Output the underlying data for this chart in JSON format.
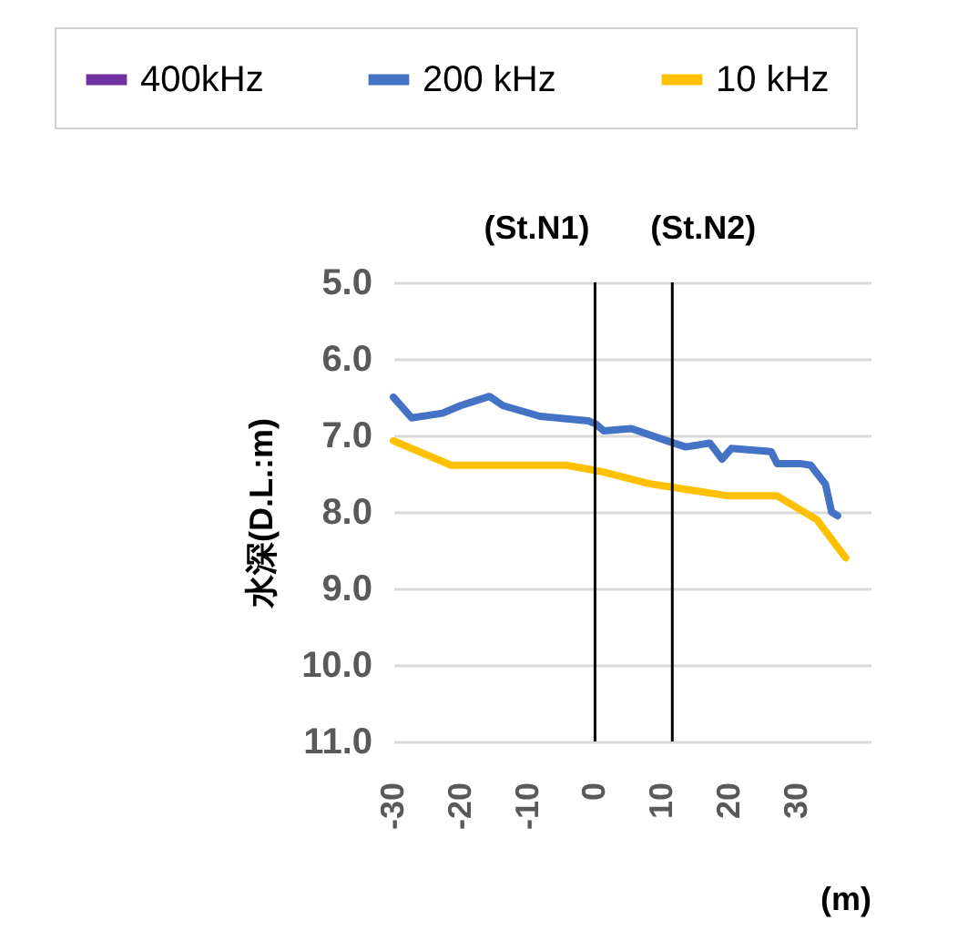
{
  "chart_data": {
    "type": "line",
    "ylabel": "水深(D.L.:m)",
    "xlabel": "(m)",
    "xlim": [
      -30,
      41
    ],
    "xticks": [
      -30,
      -20,
      -10,
      0,
      10,
      20,
      30
    ],
    "ylim": [
      11,
      5
    ],
    "yticks": [
      {
        "value": 5,
        "label": "5.0"
      },
      {
        "value": 6,
        "label": "6.0"
      },
      {
        "value": 7,
        "label": "7.0"
      },
      {
        "value": 8,
        "label": "8.0"
      },
      {
        "value": 9,
        "label": "9.0"
      },
      {
        "value": 10,
        "label": "10.0"
      },
      {
        "value": 11,
        "label": "11.0"
      }
    ],
    "grid": "y",
    "legend": "top",
    "line_style": "solid",
    "marker": "none",
    "ref_lines": [
      {
        "axis": "x",
        "value": 0,
        "label": "(St.N1)",
        "color": "#000000"
      },
      {
        "axis": "x",
        "value": 11.5,
        "label": "(St.N2)",
        "color": "#000000"
      }
    ],
    "series": [
      {
        "name": "400kHz",
        "color": "#7030a0"
      },
      {
        "name": "200 kHz",
        "color": "#4472c4",
        "x": [
          -30,
          -27.3,
          -22.7,
          -20,
          -15.7,
          -13.7,
          -8.2,
          -1,
          0.1,
          1.3,
          5.4,
          11.7,
          13.5,
          17.1,
          18.9,
          20.3,
          26.2,
          27.1,
          30.7,
          32.1,
          34.3,
          35.2,
          36.1
        ],
        "values": [
          6.5,
          6.77,
          6.71,
          6.61,
          6.49,
          6.61,
          6.75,
          6.81,
          6.85,
          6.94,
          6.91,
          7.1,
          7.15,
          7.1,
          7.31,
          7.17,
          7.21,
          7.37,
          7.37,
          7.39,
          7.64,
          8.0,
          8.05
        ]
      },
      {
        "name": "10 kHz",
        "color": "#ffc000",
        "x": [
          -30,
          -21.4,
          -4.2,
          0.8,
          8,
          19.8,
          27.1,
          33,
          37.3
        ],
        "values": [
          7.07,
          7.39,
          7.39,
          7.47,
          7.63,
          7.79,
          7.79,
          8.1,
          8.6
        ]
      }
    ]
  }
}
